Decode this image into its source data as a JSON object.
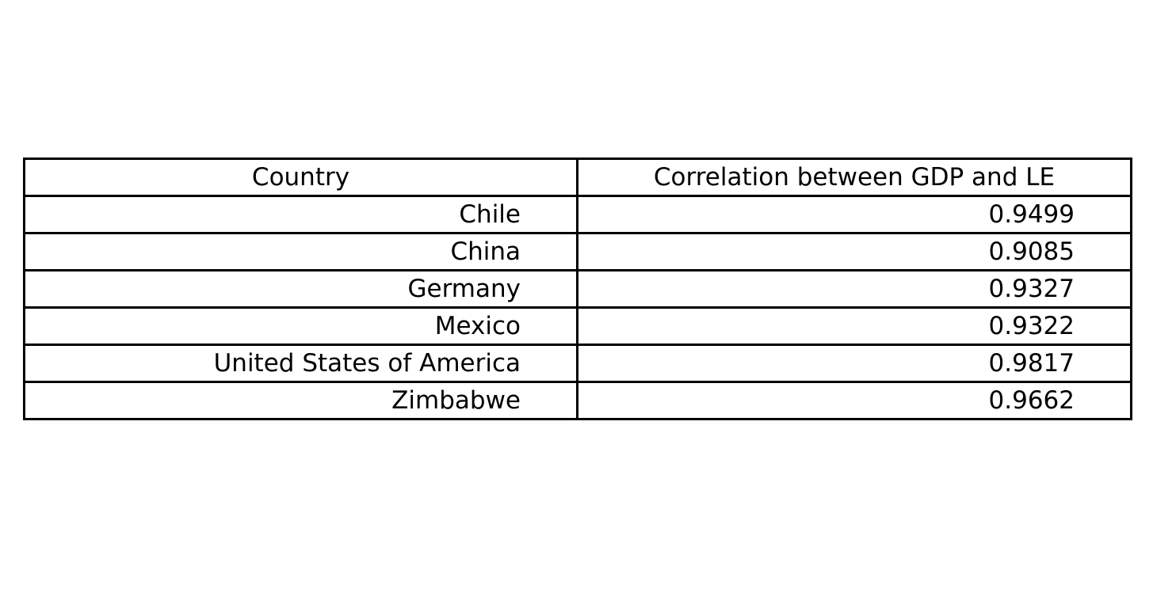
{
  "chart_data": {
    "type": "table",
    "columns": [
      "Country",
      "Correlation between GDP and LE"
    ],
    "rows": [
      [
        "Chile",
        "0.9499"
      ],
      [
        "China",
        "0.9085"
      ],
      [
        "Germany",
        "0.9327"
      ],
      [
        "Mexico",
        "0.9322"
      ],
      [
        "United States of America",
        "0.9817"
      ],
      [
        "Zimbabwe",
        "0.9662"
      ]
    ]
  }
}
